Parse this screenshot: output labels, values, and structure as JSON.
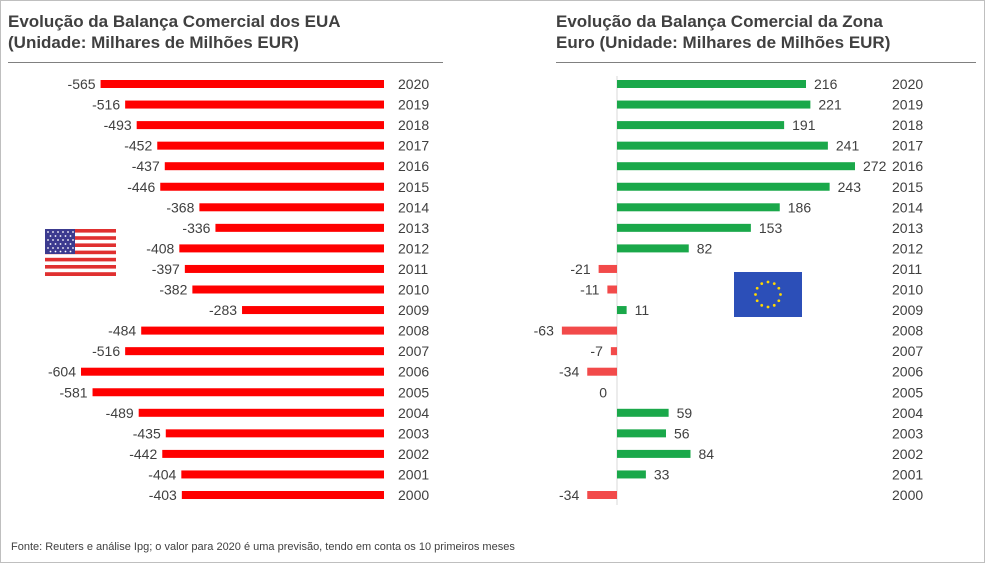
{
  "charts": {
    "left": {
      "title": "Evolução da Balança Comercial  dos EUA\n(Unidade: Milhares de Milhões EUR)"
    },
    "right": {
      "title": "Evolução da Balança Comercial  da Zona\nEuro (Unidade: Milhares de Milhões EUR)"
    }
  },
  "source": "Fonte: Reuters e análise Ipg; o valor para 2020 é uma previsão, tendo em conta os 10 primeiros meses",
  "colors": {
    "us_bar": "#ff0000",
    "ez_positive": "#1aa84a",
    "ez_negative": "#f24a4a",
    "text": "#404040"
  },
  "icons": {
    "left_flag": "usa-flag-icon",
    "right_flag": "eu-flag-icon"
  },
  "chart_data": [
    {
      "type": "bar",
      "orientation": "horizontal",
      "title": "Evolução da Balança Comercial  dos EUA (Unidade: Milhares de Milhões EUR)",
      "categories": [
        "2020",
        "2019",
        "2018",
        "2017",
        "2016",
        "2015",
        "2014",
        "2013",
        "2012",
        "2011",
        "2010",
        "2009",
        "2008",
        "2007",
        "2006",
        "2005",
        "2004",
        "2003",
        "2002",
        "2001",
        "2000"
      ],
      "values": [
        -565,
        -516,
        -493,
        -452,
        -437,
        -446,
        -368,
        -336,
        -408,
        -397,
        -382,
        -283,
        -484,
        -516,
        -604,
        -581,
        -489,
        -435,
        -442,
        -404,
        -403
      ],
      "labels": [
        "-565",
        "-516",
        "-493",
        "-452",
        "-437",
        "-446",
        "-368",
        "-336",
        "-408",
        "-397",
        "-382",
        "-283",
        "-484",
        "-516",
        "-604",
        "-581",
        "-489",
        "-435",
        "-442",
        "-404",
        "-403"
      ],
      "xlim": [
        -604,
        0
      ],
      "grid": false
    },
    {
      "type": "bar",
      "orientation": "horizontal",
      "title": "Evolução da Balança Comercial  da Zona Euro (Unidade: Milhares de Milhões EUR)",
      "categories": [
        "2020",
        "2019",
        "2018",
        "2017",
        "2016",
        "2015",
        "2014",
        "2013",
        "2012",
        "2011",
        "2010",
        "2009",
        "2008",
        "2007",
        "2006",
        "2005",
        "2004",
        "2003",
        "2002",
        "2001",
        "2000"
      ],
      "values": [
        216,
        221,
        191,
        241,
        272,
        243,
        186,
        153,
        82,
        -21,
        -11,
        11,
        -63,
        -7,
        -34,
        0,
        59,
        56,
        84,
        33,
        -34
      ],
      "labels": [
        "216",
        "221",
        "191",
        "241",
        "272",
        "243",
        "186",
        "153",
        "82",
        "-21",
        "-11",
        "11",
        "-63",
        "-7",
        "-34",
        "0",
        "59",
        "56",
        "84",
        "33",
        "-34"
      ],
      "xlim": [
        -63,
        272
      ],
      "grid": false
    }
  ]
}
